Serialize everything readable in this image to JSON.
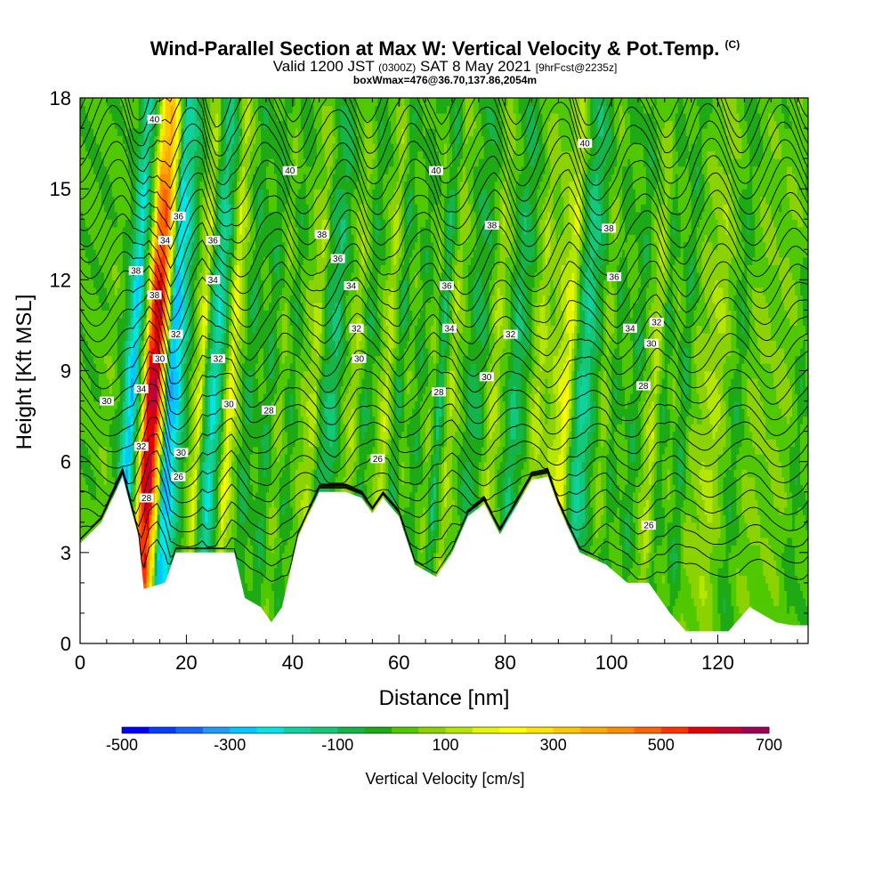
{
  "title": {
    "main": "Wind-Parallel Section at Max W: Vertical Velocity & Pot.Temp.",
    "copyright": "(C)",
    "valid_prefix": "Valid 1200 JST",
    "valid_zulu": "(0300Z)",
    "valid_date": "SAT 8 May 2021",
    "forecast": "[9hrFcst@2235z]",
    "boxmax": "boxWmax=476@36.70,137.86,2054m"
  },
  "chart_data": {
    "type": "heatmap",
    "xlabel": "Distance [nm]",
    "ylabel": "Height [Kft MSL]",
    "xlim": [
      0,
      137
    ],
    "ylim": [
      0,
      18
    ],
    "x_ticks": [
      0,
      20,
      40,
      60,
      80,
      100,
      120
    ],
    "y_ticks": [
      0,
      3,
      6,
      9,
      12,
      15,
      18
    ],
    "colorbar": {
      "label": "Vertical Velocity [cm/s]",
      "min": -500,
      "max": 700,
      "step": 50,
      "tick_labels": [
        "-500",
        "-300",
        "-100",
        "100",
        "300",
        "500",
        "700"
      ],
      "colors": [
        "#0000ff",
        "#0a3cff",
        "#1466ff",
        "#1e9bff",
        "#00c8ff",
        "#00e6e6",
        "#10d2a0",
        "#14c87a",
        "#14b44a",
        "#1eaa14",
        "#50c800",
        "#8cd200",
        "#b4e600",
        "#e6f500",
        "#ffff00",
        "#ffe600",
        "#ffc800",
        "#ffaa00",
        "#ff8c00",
        "#ff6400",
        "#ff3200",
        "#e60000",
        "#c8002d",
        "#a0005a",
        "#780078",
        "#5a0096"
      ]
    },
    "columns": [
      {
        "x": 0,
        "w": 20
      },
      {
        "x": 3,
        "w": 10
      },
      {
        "x": 6,
        "w": 40
      },
      {
        "x": 8,
        "w": -40
      },
      {
        "x": 10,
        "w": -300
      },
      {
        "x": 11,
        "w": -120
      },
      {
        "x": 12,
        "w": 120
      },
      {
        "x": 13,
        "w": 560
      },
      {
        "x": 14.5,
        "w": 650
      },
      {
        "x": 16,
        "w": 200
      },
      {
        "x": 17,
        "w": -300
      },
      {
        "x": 18.5,
        "w": -250
      },
      {
        "x": 20,
        "w": -80
      },
      {
        "x": 21.5,
        "w": 60
      },
      {
        "x": 23,
        "w": 180
      },
      {
        "x": 24,
        "w": -70
      },
      {
        "x": 25.5,
        "w": -220
      },
      {
        "x": 27,
        "w": -60
      },
      {
        "x": 28.5,
        "w": 200
      },
      {
        "x": 30,
        "w": 60
      },
      {
        "x": 32,
        "w": -70
      },
      {
        "x": 34,
        "w": 10
      },
      {
        "x": 36,
        "w": -60
      },
      {
        "x": 38,
        "w": 70
      },
      {
        "x": 40,
        "w": -40
      },
      {
        "x": 42,
        "w": 40
      },
      {
        "x": 44.5,
        "w": 120
      },
      {
        "x": 46,
        "w": -60
      },
      {
        "x": 48,
        "w": -110
      },
      {
        "x": 50,
        "w": 20
      },
      {
        "x": 52,
        "w": 110
      },
      {
        "x": 54,
        "w": -60
      },
      {
        "x": 56.5,
        "w": 40
      },
      {
        "x": 58,
        "w": 140
      },
      {
        "x": 60,
        "w": -70
      },
      {
        "x": 62,
        "w": 40
      },
      {
        "x": 64,
        "w": -40
      },
      {
        "x": 66.5,
        "w": 60
      },
      {
        "x": 68,
        "w": -110
      },
      {
        "x": 70,
        "w": 110
      },
      {
        "x": 72,
        "w": 20
      },
      {
        "x": 74,
        "w": -70
      },
      {
        "x": 76,
        "w": -40
      },
      {
        "x": 78,
        "w": 120
      },
      {
        "x": 80,
        "w": 20
      },
      {
        "x": 82,
        "w": -110
      },
      {
        "x": 84,
        "w": -30
      },
      {
        "x": 86.5,
        "w": 130
      },
      {
        "x": 88,
        "w": 50
      },
      {
        "x": 90,
        "w": 110
      },
      {
        "x": 92,
        "w": 200
      },
      {
        "x": 93.5,
        "w": -60
      },
      {
        "x": 95,
        "w": -170
      },
      {
        "x": 97,
        "w": -60
      },
      {
        "x": 99,
        "w": 80
      },
      {
        "x": 101,
        "w": -40
      },
      {
        "x": 103,
        "w": 30
      },
      {
        "x": 105,
        "w": -60
      },
      {
        "x": 107,
        "w": 60
      },
      {
        "x": 108.5,
        "w": 130
      },
      {
        "x": 110,
        "w": -40
      },
      {
        "x": 112,
        "w": 40
      },
      {
        "x": 114,
        "w": -60
      },
      {
        "x": 116,
        "w": 60
      },
      {
        "x": 118,
        "w": 80
      },
      {
        "x": 120,
        "w": 110
      },
      {
        "x": 122,
        "w": 40
      },
      {
        "x": 124,
        "w": -40
      },
      {
        "x": 126,
        "w": 40
      },
      {
        "x": 128,
        "w": 70
      },
      {
        "x": 130,
        "w": 30
      },
      {
        "x": 132,
        "w": 60
      },
      {
        "x": 134,
        "w": 40
      },
      {
        "x": 136,
        "w": -30
      },
      {
        "x": 137,
        "w": 20
      }
    ],
    "terrain": [
      [
        0,
        3.3
      ],
      [
        4,
        4.0
      ],
      [
        8,
        5.5
      ],
      [
        11,
        3.5
      ],
      [
        12,
        1.8
      ],
      [
        16,
        2.0
      ],
      [
        18,
        3.0
      ],
      [
        29,
        3.0
      ],
      [
        31,
        1.5
      ],
      [
        34,
        1.2
      ],
      [
        36,
        0.7
      ],
      [
        38,
        1.2
      ],
      [
        41,
        3.5
      ],
      [
        45,
        5.0
      ],
      [
        50,
        5.0
      ],
      [
        53,
        4.8
      ],
      [
        55,
        4.3
      ],
      [
        57,
        4.8
      ],
      [
        60,
        4.2
      ],
      [
        63,
        2.6
      ],
      [
        67,
        2.2
      ],
      [
        70,
        3.0
      ],
      [
        73,
        4.2
      ],
      [
        76,
        4.6
      ],
      [
        79,
        3.6
      ],
      [
        82,
        4.5
      ],
      [
        85,
        5.4
      ],
      [
        88,
        5.5
      ],
      [
        90,
        4.5
      ],
      [
        94,
        3.0
      ],
      [
        99,
        2.6
      ],
      [
        103,
        2.0
      ],
      [
        107,
        2.0
      ],
      [
        111,
        1.0
      ],
      [
        114,
        0.4
      ],
      [
        122,
        0.4
      ],
      [
        126,
        1.2
      ],
      [
        131,
        0.7
      ],
      [
        134,
        0.6
      ],
      [
        137,
        0.6
      ]
    ],
    "contour_levels": [
      26,
      28,
      30,
      32,
      34,
      36,
      38,
      40
    ],
    "contour_labels": [
      {
        "x": 5,
        "y": 8.0,
        "text": "30"
      },
      {
        "x": 10.5,
        "y": 12.3,
        "text": "38"
      },
      {
        "x": 11.5,
        "y": 8.4,
        "text": "34"
      },
      {
        "x": 11.5,
        "y": 6.5,
        "text": "32"
      },
      {
        "x": 12.5,
        "y": 4.8,
        "text": "28"
      },
      {
        "x": 14.0,
        "y": 17.3,
        "text": "40"
      },
      {
        "x": 14.0,
        "y": 11.5,
        "text": "38"
      },
      {
        "x": 15.0,
        "y": 9.4,
        "text": "30"
      },
      {
        "x": 16.0,
        "y": 13.3,
        "text": "34"
      },
      {
        "x": 18.5,
        "y": 14.1,
        "text": "36"
      },
      {
        "x": 18.0,
        "y": 10.2,
        "text": "32"
      },
      {
        "x": 19.0,
        "y": 6.3,
        "text": "30"
      },
      {
        "x": 18.5,
        "y": 5.5,
        "text": "26"
      },
      {
        "x": 25.0,
        "y": 13.3,
        "text": "36"
      },
      {
        "x": 25.0,
        "y": 12.0,
        "text": "34"
      },
      {
        "x": 26.0,
        "y": 9.4,
        "text": "32"
      },
      {
        "x": 28.0,
        "y": 7.9,
        "text": "30"
      },
      {
        "x": 35.5,
        "y": 7.7,
        "text": "28"
      },
      {
        "x": 39.5,
        "y": 15.6,
        "text": "40"
      },
      {
        "x": 45.5,
        "y": 13.5,
        "text": "38"
      },
      {
        "x": 48.5,
        "y": 12.7,
        "text": "36"
      },
      {
        "x": 51.0,
        "y": 11.8,
        "text": "34"
      },
      {
        "x": 52.0,
        "y": 10.4,
        "text": "32"
      },
      {
        "x": 52.5,
        "y": 9.4,
        "text": "30"
      },
      {
        "x": 56.0,
        "y": 6.1,
        "text": "26"
      },
      {
        "x": 67.0,
        "y": 15.6,
        "text": "40"
      },
      {
        "x": 69.0,
        "y": 11.8,
        "text": "36"
      },
      {
        "x": 69.5,
        "y": 10.4,
        "text": "34"
      },
      {
        "x": 67.5,
        "y": 8.3,
        "text": "28"
      },
      {
        "x": 77.5,
        "y": 13.8,
        "text": "38"
      },
      {
        "x": 81.0,
        "y": 10.2,
        "text": "32"
      },
      {
        "x": 76.5,
        "y": 8.8,
        "text": "30"
      },
      {
        "x": 95.0,
        "y": 16.5,
        "text": "40"
      },
      {
        "x": 99.5,
        "y": 13.7,
        "text": "38"
      },
      {
        "x": 100.5,
        "y": 12.1,
        "text": "36"
      },
      {
        "x": 103.5,
        "y": 10.4,
        "text": "34"
      },
      {
        "x": 108.5,
        "y": 10.6,
        "text": "32"
      },
      {
        "x": 107.5,
        "y": 9.9,
        "text": "30"
      },
      {
        "x": 106.0,
        "y": 8.5,
        "text": "28"
      },
      {
        "x": 107.0,
        "y": 3.9,
        "text": "26"
      }
    ]
  }
}
